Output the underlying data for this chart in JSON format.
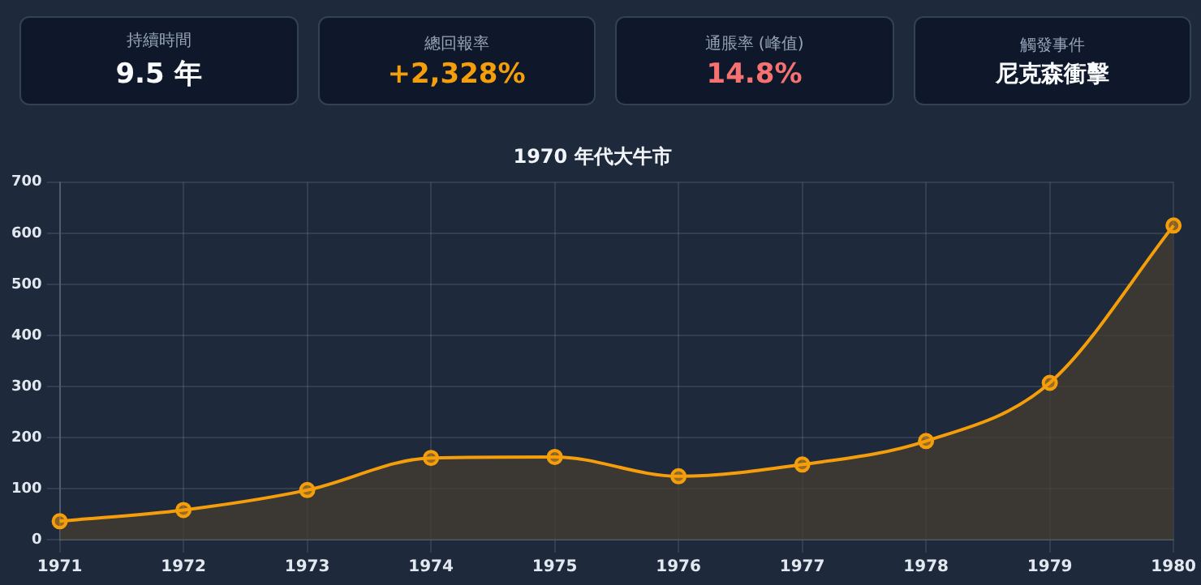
{
  "chart_data": [
    {
      "type": "other",
      "annotations": [
        "持續時間",
        "9.5 年",
        "總回報率",
        "+2,328%",
        "通脹率 (峰值)",
        "14.8%",
        "觸發事件",
        "尼克森衝擊"
      ]
    },
    {
      "type": "area",
      "title": "1970 年代大牛市",
      "categories": [
        "1971",
        "1972",
        "1973",
        "1974",
        "1975",
        "1976",
        "1977",
        "1978",
        "1979",
        "1980"
      ],
      "series": [
        {
          "color": "#f59e0b",
          "values": [
            36,
            58,
            97,
            160,
            162,
            124,
            147,
            193,
            307,
            615
          ]
        }
      ],
      "ylim": [
        0,
        700
      ],
      "yticks": [
        0,
        100,
        200,
        300,
        400,
        500,
        600,
        700
      ],
      "grid": true,
      "legend": false,
      "marker": "circle"
    }
  ]
}
